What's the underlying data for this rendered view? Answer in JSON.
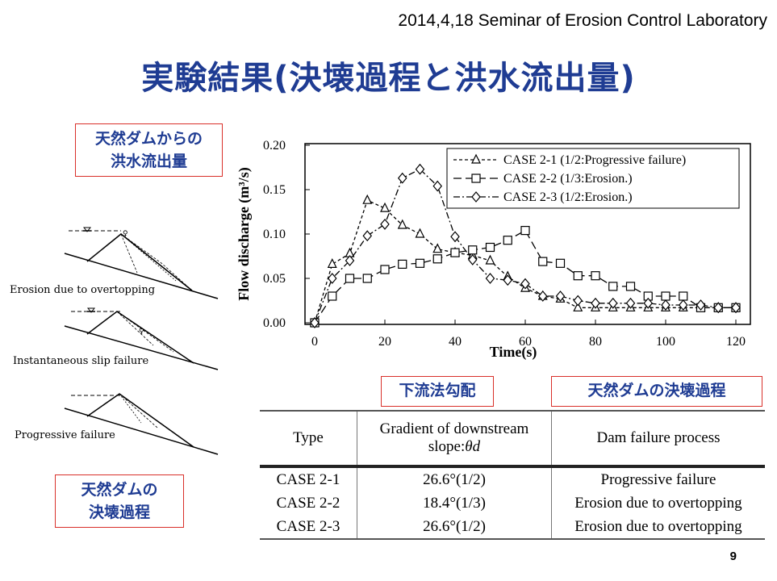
{
  "header": {
    "date_line": "2014,4,18   Seminar of Erosion Control Laboratory"
  },
  "title": "実験結果(決壊過程と洪水流出量)",
  "labels": {
    "box_outflow": [
      "天然ダムからの",
      "洪水流出量"
    ],
    "box_failure": [
      "天然ダムの",
      "決壊過程"
    ],
    "box_gradient": "下流法勾配",
    "box_process": "天然ダムの決壊過程"
  },
  "sketches": {
    "captions": [
      "Erosion due to overtopping",
      "Instantaneous slip failure",
      "Progressive failure"
    ]
  },
  "chart_data": {
    "type": "line",
    "xlabel": "Time(s)",
    "ylabel": "Flow discharge (m³/s)",
    "xlim": [
      0,
      120
    ],
    "ylim": [
      0.0,
      0.2
    ],
    "x_ticks": [
      "0",
      "20",
      "40",
      "60",
      "80",
      "100",
      "120"
    ],
    "y_ticks": [
      "0.00",
      "0.05",
      "0.10",
      "0.15",
      "0.20"
    ],
    "legend_position": "top-right",
    "series": [
      {
        "name": "CASE 2-1 (1/2:Progressive failure)",
        "marker": "triangle",
        "dash": "4,3",
        "points": [
          [
            0,
            0.0
          ],
          [
            5,
            0.066
          ],
          [
            10,
            0.078
          ],
          [
            15,
            0.138
          ],
          [
            20,
            0.129
          ],
          [
            25,
            0.11
          ],
          [
            30,
            0.1
          ],
          [
            35,
            0.083
          ],
          [
            40,
            0.079
          ],
          [
            45,
            0.076
          ],
          [
            50,
            0.07
          ],
          [
            55,
            0.052
          ],
          [
            60,
            0.039
          ],
          [
            65,
            0.03
          ],
          [
            70,
            0.027
          ],
          [
            75,
            0.017
          ],
          [
            80,
            0.017
          ],
          [
            85,
            0.017
          ],
          [
            90,
            0.017
          ],
          [
            95,
            0.017
          ],
          [
            100,
            0.017
          ],
          [
            105,
            0.017
          ],
          [
            110,
            0.017
          ],
          [
            115,
            0.017
          ],
          [
            120,
            0.017
          ]
        ]
      },
      {
        "name": "CASE 2-2 (1/3:Erosion.)",
        "marker": "square",
        "dash": "10,5",
        "points": [
          [
            0,
            0.0
          ],
          [
            5,
            0.03
          ],
          [
            10,
            0.05
          ],
          [
            15,
            0.05
          ],
          [
            20,
            0.06
          ],
          [
            25,
            0.066
          ],
          [
            30,
            0.067
          ],
          [
            35,
            0.072
          ],
          [
            40,
            0.079
          ],
          [
            45,
            0.082
          ],
          [
            50,
            0.085
          ],
          [
            55,
            0.093
          ],
          [
            60,
            0.104
          ],
          [
            65,
            0.069
          ],
          [
            70,
            0.067
          ],
          [
            75,
            0.053
          ],
          [
            80,
            0.053
          ],
          [
            85,
            0.041
          ],
          [
            90,
            0.041
          ],
          [
            95,
            0.03
          ],
          [
            100,
            0.03
          ],
          [
            105,
            0.03
          ],
          [
            110,
            0.017
          ],
          [
            115,
            0.017
          ],
          [
            120,
            0.017
          ]
        ]
      },
      {
        "name": "CASE 2-3 (1/2:Erosion.)",
        "marker": "diamond",
        "dash": "8,3,2,3",
        "points": [
          [
            0,
            0.0
          ],
          [
            5,
            0.05
          ],
          [
            10,
            0.07
          ],
          [
            15,
            0.098
          ],
          [
            20,
            0.111
          ],
          [
            25,
            0.163
          ],
          [
            30,
            0.173
          ],
          [
            35,
            0.154
          ],
          [
            40,
            0.097
          ],
          [
            45,
            0.071
          ],
          [
            50,
            0.05
          ],
          [
            55,
            0.048
          ],
          [
            60,
            0.044
          ],
          [
            65,
            0.03
          ],
          [
            70,
            0.03
          ],
          [
            75,
            0.025
          ],
          [
            80,
            0.022
          ],
          [
            85,
            0.022
          ],
          [
            90,
            0.022
          ],
          [
            95,
            0.022
          ],
          [
            100,
            0.02
          ],
          [
            105,
            0.02
          ],
          [
            110,
            0.02
          ],
          [
            115,
            0.017
          ],
          [
            120,
            0.017
          ]
        ]
      }
    ]
  },
  "table": {
    "headers": [
      "Type",
      "Gradient of downstream",
      "slope:",
      "θd",
      "Dam failure process"
    ],
    "rows": [
      [
        "CASE 2-1",
        "26.6°(1/2)",
        "Progressive failure"
      ],
      [
        "CASE 2-2",
        "18.4°(1/3)",
        "Erosion due to overtopping"
      ],
      [
        "CASE 2-3",
        "26.6°(1/2)",
        "Erosion due to overtopping"
      ]
    ]
  },
  "page_number": "9"
}
